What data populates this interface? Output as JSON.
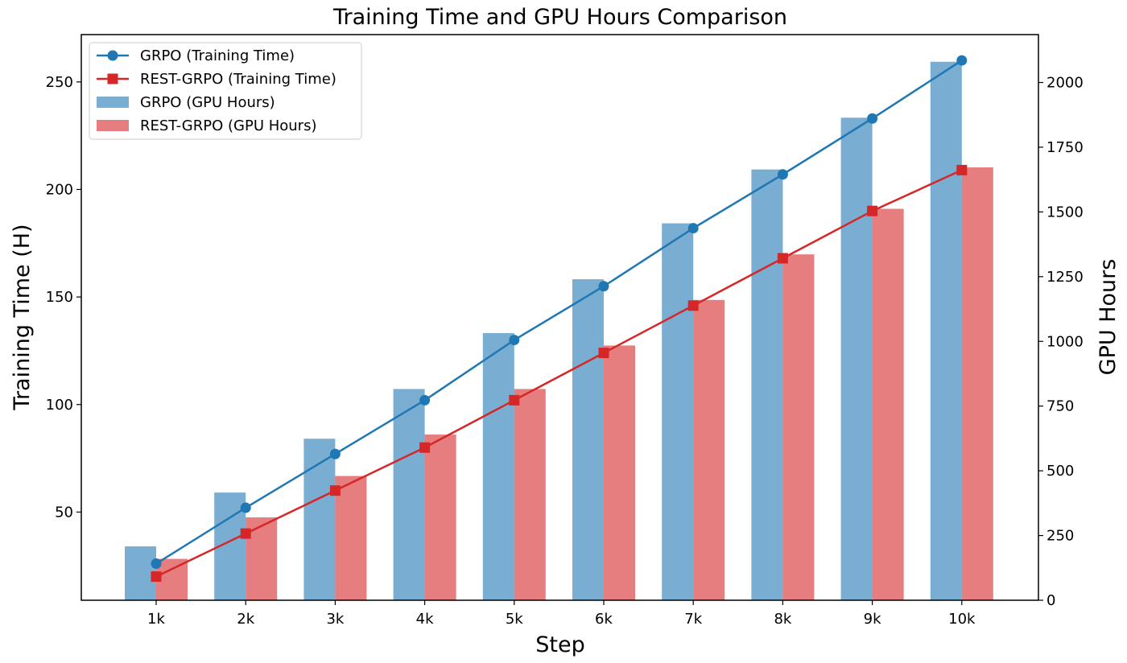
{
  "chart_data": {
    "type": "bar",
    "title": "Training Time and GPU Hours Comparison",
    "xlabel": "Step",
    "ylabel_left": "Training Time (H)",
    "ylabel_right": "GPU Hours",
    "categories": [
      "1k",
      "2k",
      "3k",
      "4k",
      "5k",
      "6k",
      "7k",
      "8k",
      "9k",
      "10k"
    ],
    "y_left": {
      "lim": [
        9,
        272
      ],
      "ticks": [
        50,
        100,
        150,
        200,
        250
      ]
    },
    "y_right": {
      "lim": [
        0,
        2185
      ],
      "ticks": [
        0,
        250,
        500,
        750,
        1000,
        1250,
        1500,
        1750,
        2000
      ]
    },
    "grid": false,
    "legend_position": "upper-left",
    "series": [
      {
        "name": "GRPO (Training Time)",
        "kind": "line",
        "axis": "left",
        "marker": "circle",
        "color": "#1f77b4",
        "values": [
          26,
          52,
          77,
          102,
          130,
          155,
          182,
          207,
          233,
          260
        ]
      },
      {
        "name": "REST-GRPO (Training Time)",
        "kind": "line",
        "axis": "left",
        "marker": "square",
        "color": "#d62728",
        "values": [
          20,
          40,
          60,
          80,
          102,
          124,
          146,
          168,
          190,
          209
        ]
      },
      {
        "name": "GRPO (GPU Hours)",
        "kind": "bar",
        "axis": "right",
        "color": "#1f77b4",
        "alpha": 0.6,
        "values": [
          208,
          416,
          624,
          816,
          1032,
          1240,
          1456,
          1664,
          1864,
          2080
        ]
      },
      {
        "name": "REST-GRPO (GPU Hours)",
        "kind": "bar",
        "axis": "right",
        "color": "#d62728",
        "alpha": 0.6,
        "values": [
          160,
          320,
          480,
          640,
          816,
          984,
          1160,
          1336,
          1512,
          1672
        ]
      }
    ]
  }
}
